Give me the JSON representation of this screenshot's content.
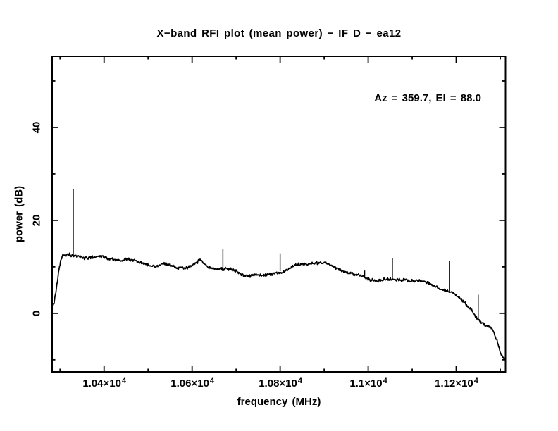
{
  "chart_data": {
    "type": "line",
    "title": "X−band RFI plot (mean power) − IF D − ea12",
    "annotation": "Az = 359.7, El = 88.0",
    "xlabel": "frequency (MHz)",
    "ylabel": "power (dB)",
    "xlim": [
      10282,
      11312
    ],
    "ylim": [
      -12.6,
      55.3
    ],
    "grid": false,
    "legend": null,
    "background_color": "#ffffff",
    "line_color": "#000000",
    "noise_db": 0.4,
    "x_ticks_major": [
      {
        "value": 10400,
        "mantissa": "1.04×10",
        "exponent": "4"
      },
      {
        "value": 10600,
        "mantissa": "1.06×10",
        "exponent": "4"
      },
      {
        "value": 10800,
        "mantissa": "1.08×10",
        "exponent": "4"
      },
      {
        "value": 11000,
        "mantissa": "1.1×10",
        "exponent": "4"
      },
      {
        "value": 11200,
        "mantissa": "1.12×10",
        "exponent": "4"
      }
    ],
    "x_ticks_minor": [
      10300,
      10500,
      10700,
      10900,
      11100,
      11300
    ],
    "y_ticks_major": [
      {
        "value": 0,
        "label": "0"
      },
      {
        "value": 20,
        "label": "20"
      },
      {
        "value": 40,
        "label": "40"
      }
    ],
    "y_ticks_minor": [
      -10,
      10,
      30,
      50
    ],
    "series": [
      {
        "name": "mean power spectrum",
        "keypoints": [
          [
            10282,
            1.8
          ],
          [
            10286,
            2.5
          ],
          [
            10290,
            4.5
          ],
          [
            10294,
            7.0
          ],
          [
            10298,
            9.8
          ],
          [
            10302,
            11.6
          ],
          [
            10306,
            12.3
          ],
          [
            10318,
            12.4
          ],
          [
            10330,
            12.2
          ],
          [
            10345,
            12.2
          ],
          [
            10360,
            11.9
          ],
          [
            10375,
            12.0
          ],
          [
            10390,
            11.9
          ],
          [
            10405,
            11.7
          ],
          [
            10420,
            11.8
          ],
          [
            10435,
            11.5
          ],
          [
            10450,
            11.6
          ],
          [
            10465,
            11.3
          ],
          [
            10480,
            11.1
          ],
          [
            10495,
            10.9
          ],
          [
            10512,
            10.4
          ],
          [
            10522,
            10.2
          ],
          [
            10532,
            10.6
          ],
          [
            10545,
            10.4
          ],
          [
            10558,
            10.2
          ],
          [
            10572,
            10.0
          ],
          [
            10585,
            9.9
          ],
          [
            10600,
            9.9
          ],
          [
            10612,
            10.7
          ],
          [
            10618,
            11.4
          ],
          [
            10626,
            10.5
          ],
          [
            10640,
            9.8
          ],
          [
            10655,
            9.6
          ],
          [
            10670,
            9.4
          ],
          [
            10685,
            9.2
          ],
          [
            10700,
            8.9
          ],
          [
            10715,
            8.5
          ],
          [
            10730,
            8.3
          ],
          [
            10745,
            8.2
          ],
          [
            10760,
            8.1
          ],
          [
            10775,
            8.4
          ],
          [
            10790,
            8.9
          ],
          [
            10800,
            9.1
          ],
          [
            10815,
            9.5
          ],
          [
            10830,
            10.1
          ],
          [
            10845,
            10.5
          ],
          [
            10860,
            10.8
          ],
          [
            10875,
            10.9
          ],
          [
            10890,
            10.7
          ],
          [
            10905,
            10.4
          ],
          [
            10920,
            9.9
          ],
          [
            10935,
            9.5
          ],
          [
            10950,
            8.9
          ],
          [
            10965,
            8.3
          ],
          [
            10980,
            7.9
          ],
          [
            10995,
            7.6
          ],
          [
            11010,
            7.4
          ],
          [
            11025,
            7.3
          ],
          [
            11040,
            7.3
          ],
          [
            11055,
            7.3
          ],
          [
            11070,
            7.4
          ],
          [
            11085,
            7.5
          ],
          [
            11100,
            7.2
          ],
          [
            11115,
            6.9
          ],
          [
            11130,
            6.6
          ],
          [
            11145,
            6.1
          ],
          [
            11160,
            5.5
          ],
          [
            11175,
            4.8
          ],
          [
            11190,
            4.2
          ],
          [
            11205,
            3.2
          ],
          [
            11220,
            2.2
          ],
          [
            11235,
            0.8
          ],
          [
            11248,
            -1.2
          ],
          [
            11258,
            -2.2
          ],
          [
            11268,
            -2.8
          ],
          [
            11278,
            -3.1
          ],
          [
            11285,
            -3.8
          ],
          [
            11291,
            -5.3
          ],
          [
            11297,
            -7.2
          ],
          [
            11303,
            -8.6
          ],
          [
            11308,
            -9.4
          ],
          [
            11312,
            -9.2
          ]
        ]
      }
    ],
    "spikes": [
      {
        "f": 10330,
        "peak": 26.8
      },
      {
        "f": 10670,
        "peak": 13.9
      },
      {
        "f": 10800,
        "peak": 12.9
      },
      {
        "f": 10992,
        "peak": 9.2
      },
      {
        "f": 11055,
        "peak": 11.9
      },
      {
        "f": 11185,
        "peak": 11.2
      },
      {
        "f": 11250,
        "peak": 4.0
      }
    ]
  }
}
